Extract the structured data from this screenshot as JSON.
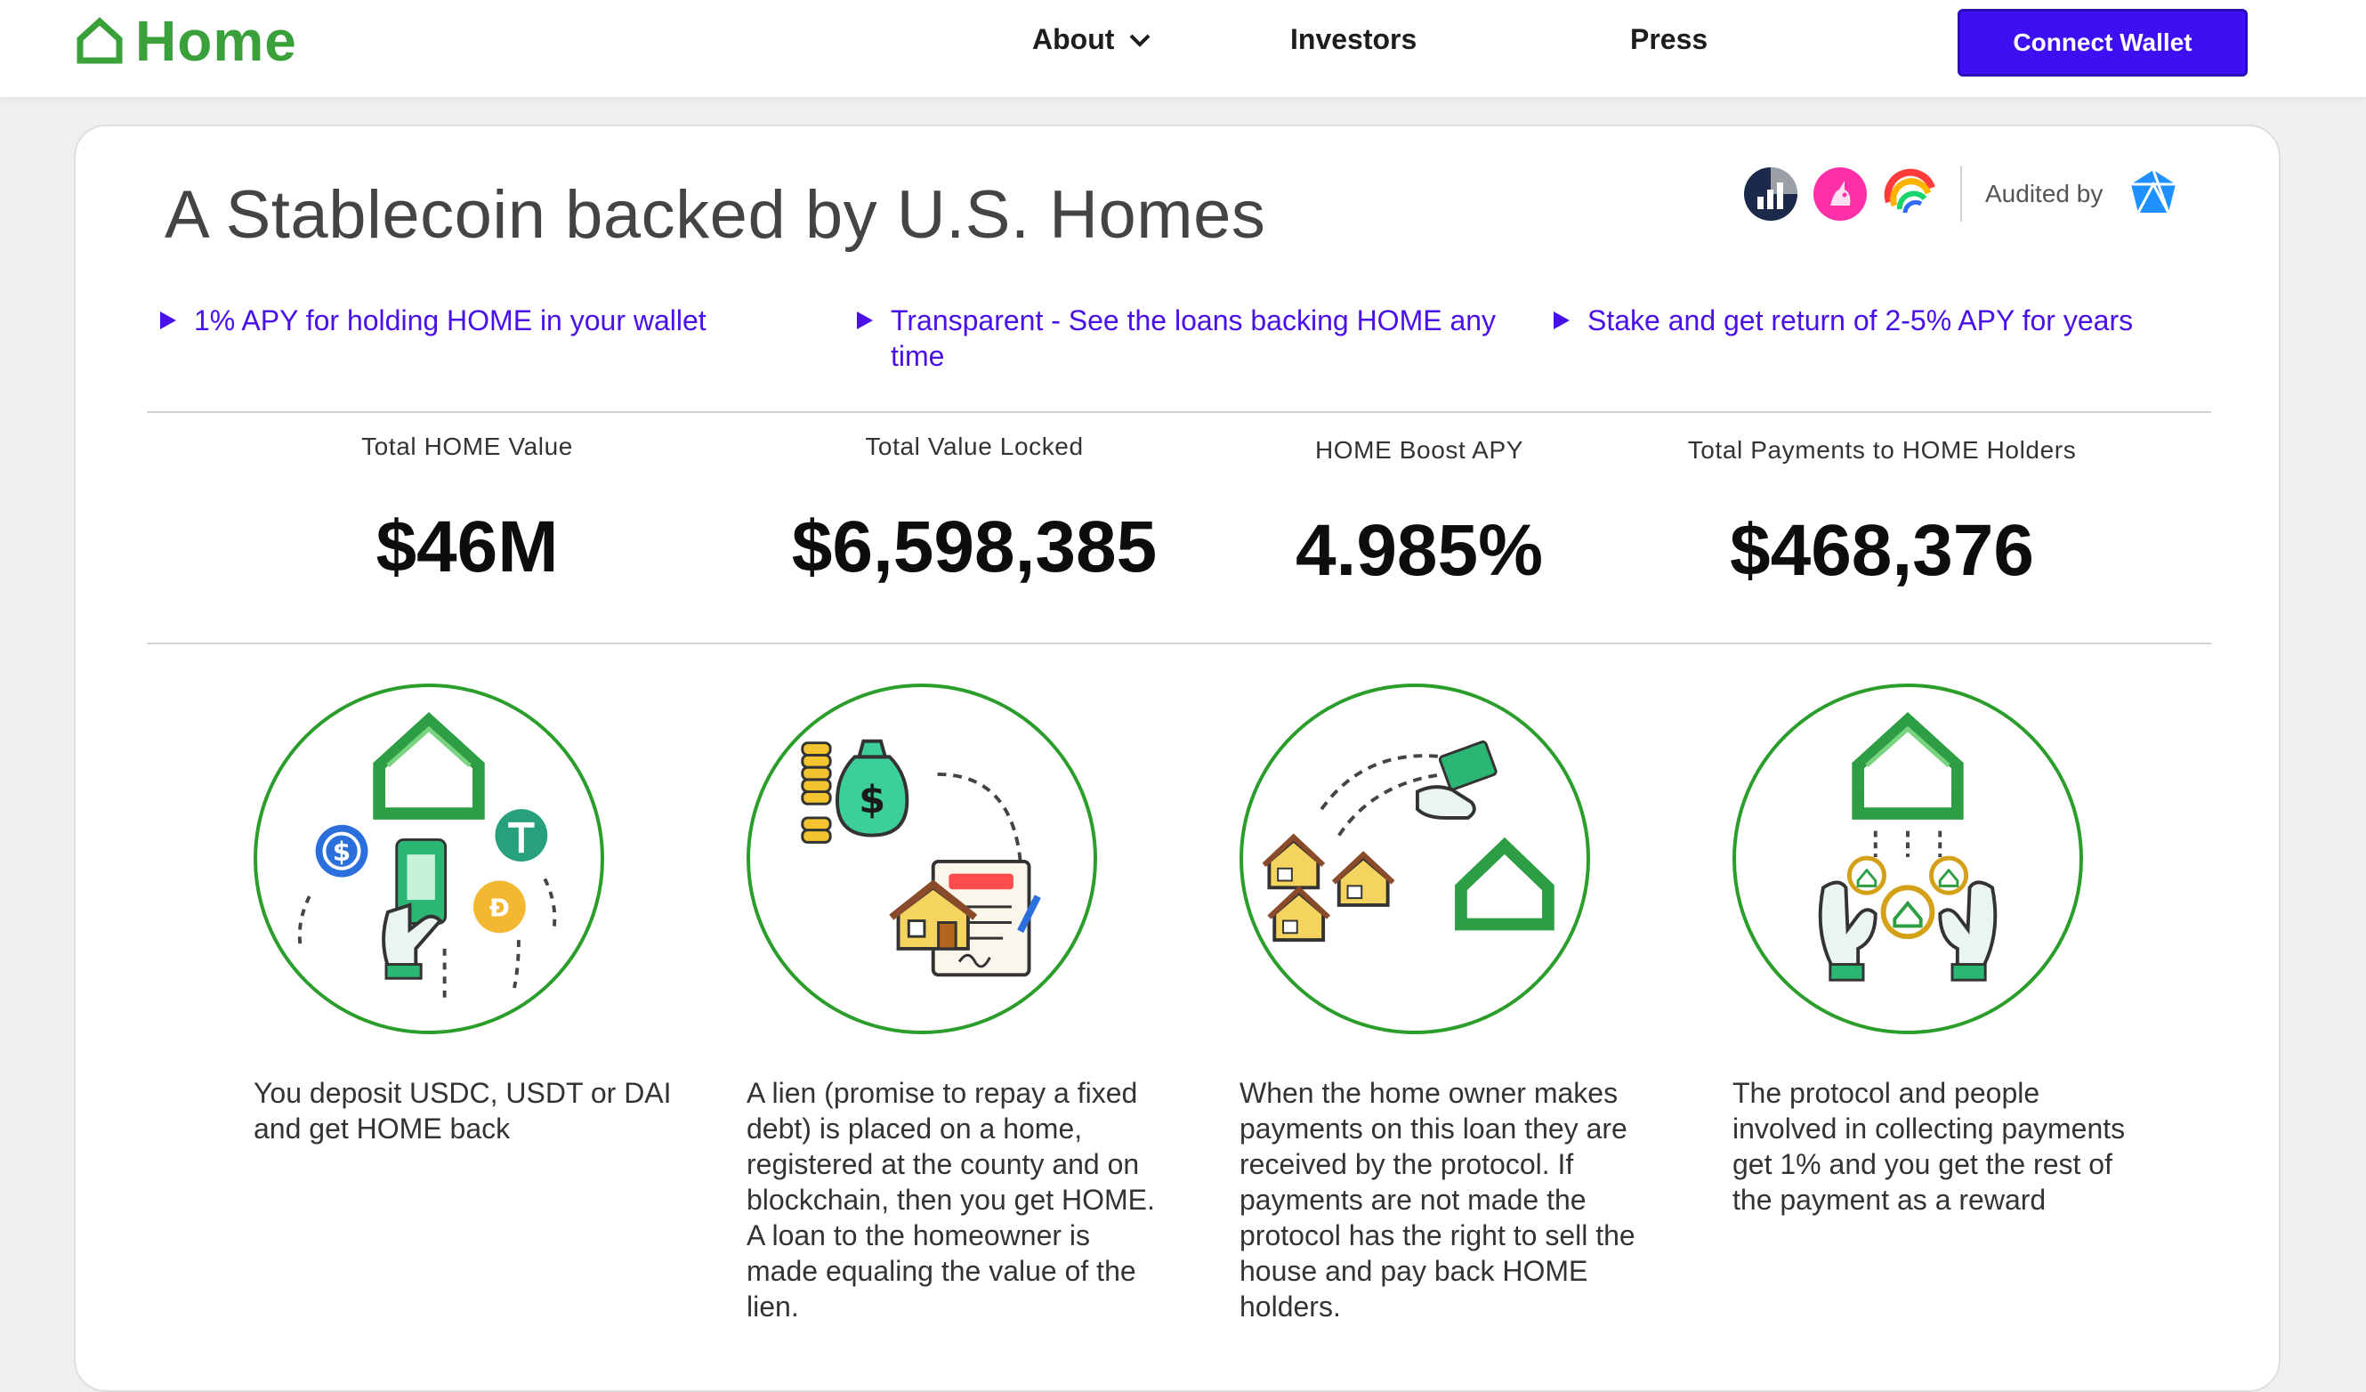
{
  "header": {
    "logo_text": "Home",
    "nav": [
      {
        "label": "About"
      },
      {
        "label": "Investors"
      },
      {
        "label": "Press"
      }
    ],
    "connect_label": "Connect Wallet"
  },
  "hero": {
    "headline": "A Stablecoin backed by U.S. Homes",
    "audited_label": "Audited by"
  },
  "features": [
    "1% APY for holding HOME in your wallet",
    "Transparent - See the loans backing HOME any time",
    "Stake and get return of 2-5% APY for years"
  ],
  "stats": [
    {
      "label": "Total HOME Value",
      "value": "$46M"
    },
    {
      "label": "Total Value Locked",
      "value": "$6,598,385"
    },
    {
      "label": "HOME Boost APY",
      "value": "4.985%"
    },
    {
      "label": "Total Payments to HOME Holders",
      "value": "$468,376"
    }
  ],
  "steps": [
    {
      "text": "You deposit USDC, USDT or DAI and get HOME back"
    },
    {
      "text": "A lien (promise to repay a fixed debt) is placed on a home, registered at the county and on blockchain, then you get HOME. A loan to the homeowner is made equaling the value of the lien."
    },
    {
      "text": "When the home owner makes payments on this loan they are received by the protocol. If payments are not made the protocol has the right to sell the house and pay back HOME holders."
    },
    {
      "text": "The protocol and people involved in collecting payments get 1% and you get the rest of the payment as a reward"
    }
  ],
  "colors": {
    "brand_green": "#3aa03a",
    "accent_purple": "#3d0ff2",
    "feature_text": "#4a10e8"
  }
}
